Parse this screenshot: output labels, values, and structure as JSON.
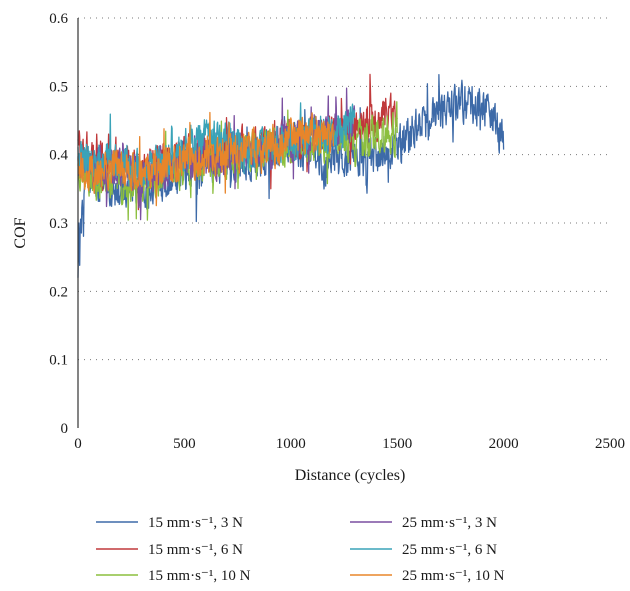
{
  "chart_data": {
    "type": "line",
    "title": "",
    "xlabel": "Distance (cycles)",
    "ylabel": "COF",
    "xlim": [
      0,
      2500
    ],
    "ylim": [
      0,
      0.6
    ],
    "x_ticks": [
      "0",
      "500",
      "1000",
      "1500",
      "2000",
      "2500"
    ],
    "y_ticks": [
      "0",
      "0.1",
      "0.2",
      "0.3",
      "0.4",
      "0.5",
      "0.6"
    ],
    "grid": "horizontal dotted",
    "legend_position": "bottom",
    "series": [
      {
        "name": "15 mm·s⁻¹, 3 N",
        "color": "#3d6aa8",
        "x": [
          0,
          30,
          100,
          200,
          300,
          350,
          400,
          500,
          600,
          700,
          800,
          900,
          1000,
          1100,
          1150,
          1200,
          1300,
          1400,
          1500,
          1600,
          1700,
          1800,
          1900,
          1950,
          2000
        ],
        "y": [
          0.22,
          0.37,
          0.36,
          0.35,
          0.35,
          0.34,
          0.36,
          0.37,
          0.38,
          0.39,
          0.39,
          0.4,
          0.41,
          0.4,
          0.38,
          0.39,
          0.4,
          0.4,
          0.41,
          0.44,
          0.46,
          0.48,
          0.47,
          0.45,
          0.43
        ]
      },
      {
        "name": "15 mm·s⁻¹, 6 N",
        "color": "#c0393b",
        "x": [
          0,
          50,
          100,
          200,
          300,
          400,
          500,
          600,
          700,
          800,
          900,
          1000,
          1100,
          1200,
          1300,
          1400,
          1500
        ],
        "y": [
          0.42,
          0.4,
          0.39,
          0.4,
          0.38,
          0.39,
          0.4,
          0.4,
          0.41,
          0.41,
          0.42,
          0.42,
          0.43,
          0.43,
          0.44,
          0.45,
          0.46
        ]
      },
      {
        "name": "15 mm·s⁻¹, 10 N",
        "color": "#8cbf3f",
        "x": [
          0,
          50,
          100,
          200,
          300,
          400,
          500,
          600,
          700,
          800,
          900,
          1000,
          1100,
          1200,
          1300,
          1400,
          1500
        ],
        "y": [
          0.38,
          0.37,
          0.36,
          0.36,
          0.35,
          0.37,
          0.38,
          0.39,
          0.39,
          0.4,
          0.41,
          0.41,
          0.42,
          0.42,
          0.42,
          0.43,
          0.43
        ]
      },
      {
        "name": "25 mm·s⁻¹, 3 N",
        "color": "#7a4fa0",
        "x": [
          0,
          50,
          100,
          200,
          300,
          400,
          500,
          600,
          700,
          800,
          900,
          1000,
          1100,
          1200,
          1300
        ],
        "y": [
          0.39,
          0.38,
          0.38,
          0.38,
          0.37,
          0.38,
          0.39,
          0.39,
          0.4,
          0.41,
          0.41,
          0.42,
          0.43,
          0.43,
          0.44
        ]
      },
      {
        "name": "25 mm·s⁻¹, 6 N",
        "color": "#3aa3b8",
        "x": [
          0,
          50,
          100,
          200,
          300,
          400,
          500,
          600,
          700,
          800,
          900,
          1000,
          1100,
          1200,
          1300
        ],
        "y": [
          0.4,
          0.39,
          0.39,
          0.39,
          0.38,
          0.39,
          0.41,
          0.42,
          0.42,
          0.41,
          0.41,
          0.42,
          0.43,
          0.43,
          0.44
        ]
      },
      {
        "name": "25 mm·s⁻¹, 10 N",
        "color": "#e8852a",
        "x": [
          0,
          50,
          100,
          200,
          300,
          400,
          500,
          600,
          700,
          800,
          900,
          1000,
          1100,
          1200
        ],
        "y": [
          0.38,
          0.37,
          0.37,
          0.38,
          0.37,
          0.38,
          0.39,
          0.4,
          0.4,
          0.41,
          0.41,
          0.42,
          0.43,
          0.43
        ]
      }
    ]
  }
}
